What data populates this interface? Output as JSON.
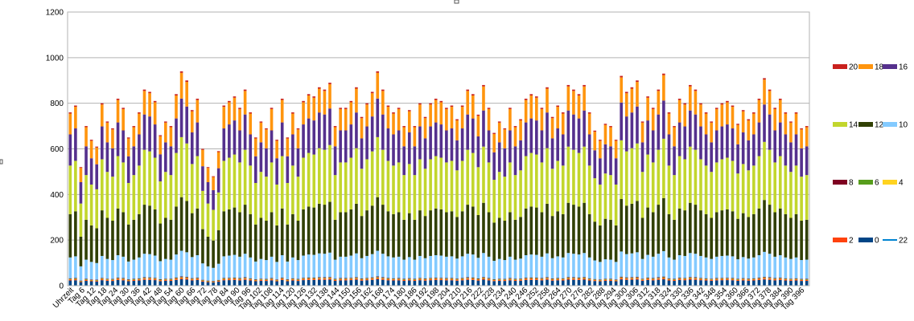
{
  "chart_data": {
    "type": "bar",
    "stacked": true,
    "title": "",
    "xlabel": "",
    "ylabel": "",
    "ylim": [
      0,
      1200
    ],
    "yticks": [
      0,
      200,
      400,
      600,
      800,
      1000,
      1200
    ],
    "grid": true,
    "legend_position": "right",
    "x_tick_labels": [
      "Uhrzeit",
      "Tag 6",
      "Tag 12",
      "Tag 18",
      "Tag 24",
      "Tag 30",
      "Tag 36",
      "Tag 42",
      "Tag 48",
      "Tag 54",
      "Tag 60",
      "Tag 66",
      "Tag 72",
      "Tag 78",
      "Tag 84",
      "Tag 90",
      "Tag 96",
      "Tag 102",
      "Tag 108",
      "Tag 114",
      "Tag 120",
      "Tag 126",
      "Tag 132",
      "Tag 138",
      "Tag 144",
      "Tag 150",
      "Tag 156",
      "Tag 162",
      "Tag 168",
      "Tag 174",
      "Tag 180",
      "Tag 186",
      "Tag 192",
      "Tag 198",
      "Tag 204",
      "Tag 210",
      "Tag 216",
      "Tag 222",
      "Tag 228",
      "Tag 234",
      "Tag 240",
      "Tag 246",
      "Tag 252",
      "Tag 258",
      "Tag 264",
      "Tag 270",
      "Tag 276",
      "Tag 282",
      "Tag 288",
      "Tag 294",
      "Tag 300",
      "Tag 306",
      "Tag 312",
      "Tag 318",
      "Tag 324",
      "Tag 330",
      "Tag 336",
      "Tag 342",
      "Tag 348",
      "Tag 354",
      "Tag 360",
      "Tag 366",
      "Tag 372",
      "Tag 378",
      "Tag 384",
      "Tag 390",
      "Tag 396"
    ],
    "sample_totals": [
      760,
      790,
      520,
      700,
      640,
      610,
      800,
      720,
      690,
      820,
      780,
      650,
      700,
      760,
      860,
      850,
      810,
      660,
      720,
      700,
      840,
      940,
      900,
      770,
      820,
      600,
      520,
      480,
      590,
      790,
      810,
      830,
      780,
      860,
      760,
      650,
      720,
      690,
      780,
      640,
      820,
      650,
      760,
      690,
      810,
      840,
      830,
      870,
      860,
      890,
      700,
      780,
      780,
      810,
      870,
      740,
      800,
      850,
      940,
      860,
      790,
      760,
      780,
      700,
      770,
      700,
      800,
      740,
      800,
      820,
      810,
      780,
      790,
      730,
      790,
      860,
      840,
      750,
      880,
      780,
      670,
      720,
      690,
      780,
      700,
      730,
      820,
      840,
      830,
      780,
      870,
      740,
      790,
      760,
      880,
      860,
      840,
      880,
      760,
      680,
      640,
      710,
      700,
      640,
      920,
      850,
      870,
      900,
      720,
      830,
      780,
      860,
      930,
      760,
      700,
      820,
      800,
      880,
      860,
      800,
      760,
      720,
      780,
      800,
      810,
      790,
      710,
      770,
      730,
      760,
      820,
      910,
      860,
      780,
      820,
      760,
      720,
      760,
      690,
      700
    ],
    "legend": [
      {
        "name": "20",
        "color": "#c9211e"
      },
      {
        "name": "18",
        "color": "#ff950e"
      },
      {
        "name": "16",
        "color": "#55308d"
      },
      {
        "name": "14",
        "color": "#c2d62d"
      },
      {
        "name": "12",
        "color": "#314004"
      },
      {
        "name": "10",
        "color": "#83caff"
      },
      {
        "name": "8",
        "color": "#7e0021"
      },
      {
        "name": "6",
        "color": "#579d1c"
      },
      {
        "name": "4",
        "color": "#ffd320"
      },
      {
        "name": "2",
        "color": "#ff420e"
      },
      {
        "name": "0",
        "color": "#004586"
      },
      {
        "name": "22",
        "color": "#0084d1"
      }
    ],
    "series": [
      {
        "name": "0",
        "color": "#004586",
        "share": 0.03
      },
      {
        "name": "2",
        "color": "#ff420e",
        "share": 0.006
      },
      {
        "name": "4",
        "color": "#ffd320",
        "share": 0.002
      },
      {
        "name": "6",
        "color": "#579d1c",
        "share": 0.002
      },
      {
        "name": "8",
        "color": "#7e0021",
        "share": 0.003
      },
      {
        "name": "10",
        "color": "#83caff",
        "share": 0.12
      },
      {
        "name": "12",
        "color": "#314004",
        "share": 0.25
      },
      {
        "name": "14",
        "color": "#c2d62d",
        "share": 0.28
      },
      {
        "name": "16",
        "color": "#55308d",
        "share": 0.18
      },
      {
        "name": "18",
        "color": "#ff950e",
        "share": 0.12
      },
      {
        "name": "20",
        "color": "#c9211e",
        "share": 0.007
      },
      {
        "name": "22",
        "color": "#0084d1",
        "share": 0.0
      }
    ]
  }
}
